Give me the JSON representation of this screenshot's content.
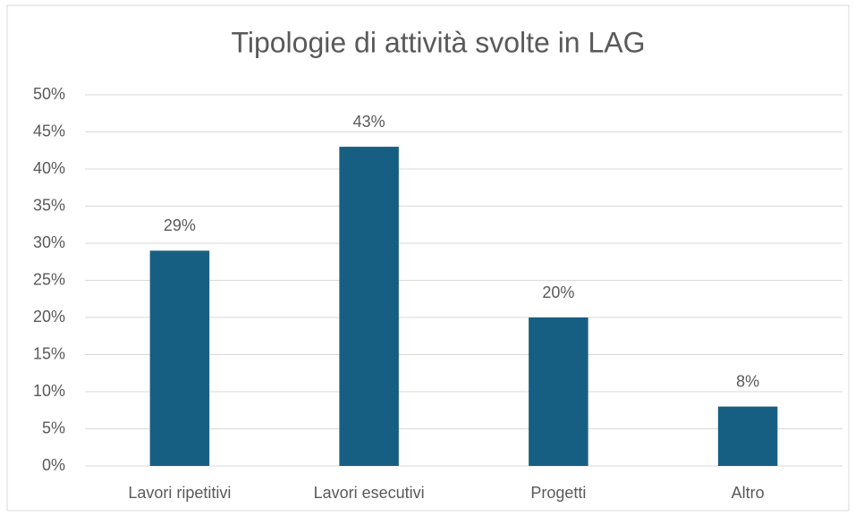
{
  "chart_data": {
    "type": "bar",
    "title": "Tipologie di attività svolte in LAG",
    "categories": [
      "Lavori ripetitivi",
      "Lavori esecutivi",
      "Progetti",
      "Altro"
    ],
    "values": [
      29,
      43,
      20,
      8
    ],
    "value_labels": [
      "29%",
      "43%",
      "20%",
      "8%"
    ],
    "color": "#175f82",
    "ylim": [
      0,
      50
    ],
    "yticks": [
      {
        "value": 0,
        "label": "0%"
      },
      {
        "value": 5,
        "label": "5%"
      },
      {
        "value": 10,
        "label": "10%"
      },
      {
        "value": 15,
        "label": "15%"
      },
      {
        "value": 20,
        "label": "20%"
      },
      {
        "value": 25,
        "label": "25%"
      },
      {
        "value": 30,
        "label": "30%"
      },
      {
        "value": 35,
        "label": "35%"
      },
      {
        "value": 40,
        "label": "40%"
      },
      {
        "value": 45,
        "label": "45%"
      },
      {
        "value": 50,
        "label": "50%"
      }
    ],
    "grid": true
  }
}
